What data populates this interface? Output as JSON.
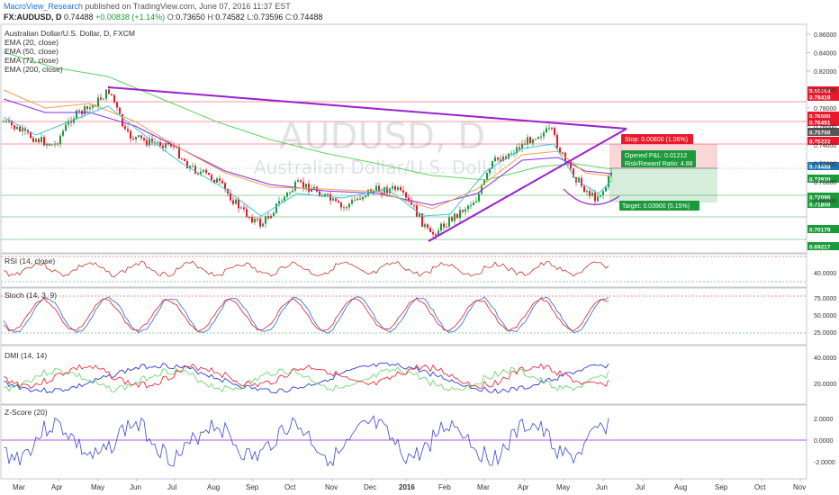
{
  "header": {
    "author": "MacroView_Research",
    "published": "published on TradingView.com, June 07, 2016 11:37 EST",
    "symbol": "FX:AUDUSD",
    "interval": "D",
    "last": "0.74488",
    "change": "+0.00838 (+1.14%)",
    "open_label": "O:",
    "open": "0.73650",
    "high_label": "H:",
    "high": "0.74582",
    "low_label": "L:",
    "low": "0.73596",
    "close_label": "C:",
    "close": "0.74488"
  },
  "main_pane": {
    "title": "Australian Dollar/U.S. Dollar, D, FXCM",
    "indicators": [
      "EMA (20, close)",
      "EMA (50, close)",
      "EMA (72, close)",
      "EMA (200, close)"
    ],
    "watermark_symbol": "AUDUSD, D",
    "watermark_name": "Australian Dollar/U.S. Dollar",
    "y_ticks": [
      "0.86000",
      "0.84000",
      "0.82000",
      "0.80000",
      "0.78000",
      "0.76000",
      "0.74000",
      "0.72000",
      "0.70000",
      "0.68000"
    ],
    "price_tags": [
      {
        "text": "0.80264",
        "color": "#e8192c"
      },
      {
        "text": "0.78419",
        "color": "#e8192c"
      },
      {
        "text": "0.76500",
        "color": "#e8192c"
      },
      {
        "text": "0.76451",
        "color": "#e8192c"
      },
      {
        "text": "0.75700",
        "color": "#555555"
      },
      {
        "text": "0.75222",
        "color": "#e8192c"
      },
      {
        "text": "0.74488",
        "color": "#1f77b4"
      },
      {
        "text": "0.73930",
        "color": "#1a9a3a"
      },
      {
        "text": "0.72086",
        "color": "#1a9a3a"
      },
      {
        "text": "0.71800",
        "color": "#1a9a3a"
      },
      {
        "text": "0.70179",
        "color": "#1a9a3a"
      },
      {
        "text": "0.69217",
        "color": "#1a9a3a"
      }
    ],
    "stop_label": "Stop: 0.00800 (1.06%)",
    "pnl_label": "Opened P&L: 0.01212",
    "rr_label": "Risk/Reward Ratio: 4.88",
    "target_label": "Target: 0.03900 (5.15%)"
  },
  "rsi_pane": {
    "title": "RSI (14, close)",
    "tick": "40.0000"
  },
  "stoch_pane": {
    "title": "Stoch (14, 3, 9)",
    "ticks": [
      "75.0000",
      "50.0000",
      "25.0000"
    ]
  },
  "dmi_pane": {
    "title": "DMI (14, 14)",
    "ticks": [
      "40.0000",
      "20.0000"
    ]
  },
  "zscore_pane": {
    "title": "Z-Score (20)",
    "ticks": [
      "2.0000",
      "0.0000",
      "-2.0000"
    ]
  },
  "x_axis": [
    "Mar",
    "Apr",
    "May",
    "Jun",
    "Jul",
    "Aug",
    "Sep",
    "Oct",
    "Nov",
    "Dec",
    "2016",
    "Feb",
    "Mar",
    "Apr",
    "May",
    "Jun",
    "Jul",
    "Aug",
    "Sep",
    "Oct",
    "Nov"
  ],
  "colors": {
    "bull": "#1a9a3a",
    "bear": "#e8192c",
    "trendline": "#9b1fcf",
    "ema20": "#40c4d8",
    "ema50": "#f0a050",
    "ema72": "#8a2be2",
    "ema200": "#5fd35f"
  }
}
